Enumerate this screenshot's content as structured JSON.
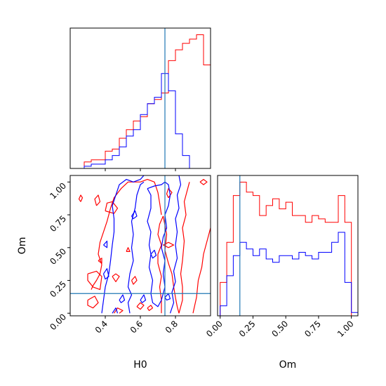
{
  "chart_data": {
    "type": "corner-plot",
    "parameters": [
      "H0",
      "Om"
    ],
    "truth": {
      "H0": 0.74,
      "Om": 0.15
    },
    "colors": {
      "red_series": "#ff0000",
      "blue_series": "#0000ff",
      "truth_line": "#1f77b4"
    },
    "axes": {
      "H0": {
        "xlim": [
          0.2,
          1.0
        ],
        "ticks": [
          0.4,
          0.6,
          0.8
        ],
        "tick_labels": [
          "0.4",
          "0.6",
          "0.8"
        ],
        "label": "H0"
      },
      "Om": {
        "lim": [
          -0.02,
          1.05
        ],
        "ticks": [
          0.0,
          0.25,
          0.5,
          0.75,
          1.0
        ],
        "tick_labels": [
          "0.00",
          "0.25",
          "0.50",
          "0.75",
          "1.00"
        ],
        "label": "Om"
      }
    },
    "hist_H0": {
      "bin_edges": [
        0.28,
        0.32,
        0.36,
        0.4,
        0.44,
        0.48,
        0.52,
        0.56,
        0.6,
        0.64,
        0.68,
        0.72,
        0.76,
        0.8,
        0.84,
        0.88,
        0.92,
        0.96,
        1.0
      ],
      "red": [
        3,
        4,
        4,
        8,
        9,
        14,
        18,
        22,
        24,
        30,
        32,
        35,
        50,
        55,
        58,
        60,
        62,
        48,
        35
      ],
      "blue": [
        1,
        2,
        2,
        4,
        6,
        10,
        15,
        18,
        25,
        30,
        33,
        44,
        36,
        16,
        6,
        0,
        0,
        0,
        0
      ]
    },
    "hist_Om": {
      "bin_edges": [
        -0.05,
        0.0,
        0.05,
        0.1,
        0.15,
        0.2,
        0.25,
        0.3,
        0.35,
        0.4,
        0.45,
        0.5,
        0.55,
        0.6,
        0.65,
        0.7,
        0.75,
        0.8,
        0.85,
        0.9,
        0.95,
        1.0,
        1.05
      ],
      "red": [
        0,
        10,
        22,
        36,
        40,
        37,
        36,
        30,
        33,
        35,
        32,
        34,
        30,
        30,
        28,
        30,
        29,
        28,
        28,
        36,
        28,
        0,
        0
      ],
      "blue": [
        0,
        3,
        12,
        18,
        22,
        20,
        18,
        20,
        17,
        16,
        18,
        18,
        17,
        19,
        18,
        17,
        19,
        19,
        22,
        25,
        10,
        1,
        0
      ]
    },
    "contours_red": [
      [
        [
          0.32,
          0.18
        ],
        [
          0.33,
          0.21
        ],
        [
          0.35,
          0.25
        ],
        [
          0.37,
          0.3
        ],
        [
          0.38,
          0.37
        ],
        [
          0.36,
          0.45
        ],
        [
          0.37,
          0.54
        ],
        [
          0.39,
          0.62
        ],
        [
          0.41,
          0.7
        ],
        [
          0.43,
          0.8
        ],
        [
          0.45,
          0.88
        ],
        [
          0.49,
          0.95
        ],
        [
          0.53,
          1.0
        ],
        [
          0.6,
          1.0
        ],
        [
          0.64,
          1.02
        ],
        [
          0.68,
          1.0
        ],
        [
          0.7,
          0.92
        ],
        [
          0.71,
          0.84
        ],
        [
          0.72,
          0.75
        ]
      ],
      [
        [
          0.73,
          0.74
        ],
        [
          0.75,
          0.6
        ],
        [
          0.74,
          0.48
        ],
        [
          0.76,
          0.38
        ],
        [
          0.78,
          0.3
        ],
        [
          0.79,
          0.2
        ],
        [
          0.8,
          0.12
        ],
        [
          0.81,
          0.05
        ],
        [
          0.82,
          0.0
        ]
      ],
      [
        [
          0.72,
          0.0
        ],
        [
          0.72,
          0.1
        ],
        [
          0.71,
          0.2
        ],
        [
          0.72,
          0.28
        ],
        [
          0.7,
          0.38
        ],
        [
          0.7,
          0.45
        ],
        [
          0.72,
          0.52
        ],
        [
          0.7,
          0.6
        ],
        [
          0.71,
          0.68
        ],
        [
          0.73,
          0.74
        ]
      ],
      [
        [
          0.82,
          0.0
        ],
        [
          0.84,
          0.1
        ],
        [
          0.84,
          0.2
        ],
        [
          0.83,
          0.3
        ],
        [
          0.84,
          0.4
        ],
        [
          0.85,
          0.55
        ],
        [
          0.84,
          0.65
        ],
        [
          0.86,
          0.75
        ],
        [
          0.85,
          0.85
        ],
        [
          0.87,
          0.95
        ],
        [
          0.88,
          1.0
        ]
      ],
      [
        [
          0.9,
          0.0
        ],
        [
          0.92,
          0.12
        ],
        [
          0.93,
          0.25
        ],
        [
          0.95,
          0.35
        ],
        [
          0.96,
          0.45
        ],
        [
          0.98,
          0.55
        ],
        [
          1.0,
          0.65
        ]
      ],
      [
        [
          0.3,
          0.3
        ],
        [
          0.35,
          0.32
        ],
        [
          0.38,
          0.28
        ],
        [
          0.37,
          0.18
        ],
        [
          0.33,
          0.2
        ],
        [
          0.3,
          0.25
        ],
        [
          0.3,
          0.3
        ]
      ],
      [
        [
          0.3,
          0.1
        ],
        [
          0.34,
          0.13
        ],
        [
          0.36,
          0.08
        ],
        [
          0.33,
          0.04
        ],
        [
          0.3,
          0.06
        ],
        [
          0.3,
          0.1
        ]
      ],
      [
        [
          0.4,
          0.78
        ],
        [
          0.45,
          0.76
        ],
        [
          0.47,
          0.8
        ],
        [
          0.44,
          0.85
        ],
        [
          0.41,
          0.84
        ],
        [
          0.4,
          0.78
        ]
      ],
      [
        [
          0.35,
          0.82
        ],
        [
          0.37,
          0.85
        ],
        [
          0.36,
          0.9
        ],
        [
          0.34,
          0.87
        ],
        [
          0.35,
          0.82
        ]
      ],
      [
        [
          0.26,
          0.85
        ],
        [
          0.27,
          0.88
        ],
        [
          0.26,
          0.9
        ],
        [
          0.25,
          0.87
        ],
        [
          0.26,
          0.85
        ]
      ],
      [
        [
          0.73,
          0.52
        ],
        [
          0.76,
          0.5
        ],
        [
          0.79,
          0.52
        ],
        [
          0.76,
          0.54
        ],
        [
          0.73,
          0.52
        ]
      ],
      [
        [
          0.76,
          0.88
        ],
        [
          0.78,
          0.92
        ],
        [
          0.76,
          0.95
        ],
        [
          0.75,
          0.91
        ],
        [
          0.76,
          0.88
        ]
      ],
      [
        [
          0.94,
          1.0
        ],
        [
          0.96,
          1.02
        ],
        [
          0.98,
          1.0
        ],
        [
          0.96,
          0.98
        ],
        [
          0.94,
          1.0
        ]
      ],
      [
        [
          0.44,
          0.28
        ],
        [
          0.46,
          0.3
        ],
        [
          0.48,
          0.28
        ],
        [
          0.46,
          0.24
        ],
        [
          0.44,
          0.28
        ]
      ],
      [
        [
          0.55,
          0.25
        ],
        [
          0.57,
          0.28
        ],
        [
          0.58,
          0.25
        ],
        [
          0.56,
          0.22
        ],
        [
          0.55,
          0.25
        ]
      ],
      [
        [
          0.58,
          0.05
        ],
        [
          0.6,
          0.08
        ],
        [
          0.62,
          0.06
        ],
        [
          0.6,
          0.03
        ],
        [
          0.58,
          0.05
        ]
      ],
      [
        [
          0.64,
          0.04
        ],
        [
          0.66,
          0.06
        ],
        [
          0.67,
          0.04
        ],
        [
          0.65,
          0.02
        ],
        [
          0.64,
          0.04
        ]
      ],
      [
        [
          0.45,
          0.0
        ],
        [
          0.47,
          0.04
        ],
        [
          0.5,
          0.02
        ],
        [
          0.48,
          0.0
        ]
      ],
      [
        [
          0.52,
          0.47
        ],
        [
          0.53,
          0.5
        ],
        [
          0.54,
          0.47
        ],
        [
          0.52,
          0.47
        ]
      ],
      [
        [
          0.36,
          0.4
        ],
        [
          0.38,
          0.42
        ],
        [
          0.38,
          0.38
        ],
        [
          0.36,
          0.4
        ]
      ]
    ],
    "contours_blue": [
      [
        [
          0.38,
          0.0
        ],
        [
          0.39,
          0.1
        ],
        [
          0.4,
          0.2
        ],
        [
          0.42,
          0.3
        ],
        [
          0.43,
          0.4
        ],
        [
          0.44,
          0.52
        ],
        [
          0.45,
          0.62
        ],
        [
          0.45,
          0.72
        ],
        [
          0.44,
          0.82
        ],
        [
          0.46,
          0.9
        ],
        [
          0.48,
          0.98
        ],
        [
          0.52,
          1.02
        ],
        [
          0.56,
          1.0
        ],
        [
          0.6,
          1.02
        ],
        [
          0.62,
          1.05
        ]
      ],
      [
        [
          0.54,
          0.0
        ],
        [
          0.53,
          0.08
        ],
        [
          0.55,
          0.14
        ],
        [
          0.53,
          0.2
        ],
        [
          0.54,
          0.3
        ],
        [
          0.56,
          0.4
        ],
        [
          0.55,
          0.5
        ],
        [
          0.56,
          0.6
        ],
        [
          0.55,
          0.7
        ],
        [
          0.57,
          0.8
        ],
        [
          0.58,
          0.9
        ],
        [
          0.6,
          0.98
        ],
        [
          0.62,
          1.0
        ]
      ],
      [
        [
          0.64,
          0.95
        ],
        [
          0.66,
          0.9
        ],
        [
          0.66,
          0.8
        ],
        [
          0.64,
          0.7
        ],
        [
          0.66,
          0.62
        ],
        [
          0.65,
          0.52
        ],
        [
          0.66,
          0.45
        ],
        [
          0.65,
          0.35
        ],
        [
          0.67,
          0.25
        ],
        [
          0.66,
          0.15
        ],
        [
          0.67,
          0.08
        ],
        [
          0.7,
          0.05
        ],
        [
          0.72,
          0.1
        ]
      ],
      [
        [
          0.64,
          0.95
        ],
        [
          0.68,
          0.97
        ],
        [
          0.72,
          0.98
        ],
        [
          0.74,
          1.0
        ],
        [
          0.76,
          0.98
        ],
        [
          0.77,
          0.9
        ],
        [
          0.76,
          0.82
        ],
        [
          0.74,
          0.75
        ],
        [
          0.75,
          0.65
        ],
        [
          0.73,
          0.58
        ],
        [
          0.72,
          0.5
        ],
        [
          0.74,
          0.4
        ],
        [
          0.73,
          0.3
        ],
        [
          0.74,
          0.2
        ],
        [
          0.72,
          0.1
        ]
      ],
      [
        [
          0.77,
          0.0
        ],
        [
          0.79,
          0.08
        ],
        [
          0.78,
          0.16
        ],
        [
          0.8,
          0.24
        ],
        [
          0.79,
          0.32
        ],
        [
          0.81,
          0.42
        ],
        [
          0.8,
          0.52
        ],
        [
          0.81,
          0.62
        ],
        [
          0.8,
          0.72
        ],
        [
          0.82,
          0.8
        ],
        [
          0.81,
          0.9
        ],
        [
          0.83,
          0.98
        ],
        [
          0.82,
          1.05
        ]
      ],
      [
        [
          0.66,
          0.45
        ],
        [
          0.68,
          0.48
        ],
        [
          0.69,
          0.44
        ],
        [
          0.67,
          0.42
        ],
        [
          0.66,
          0.45
        ]
      ],
      [
        [
          0.39,
          0.3
        ],
        [
          0.41,
          0.34
        ],
        [
          0.42,
          0.28
        ],
        [
          0.4,
          0.26
        ],
        [
          0.39,
          0.3
        ]
      ],
      [
        [
          0.39,
          0.52
        ],
        [
          0.41,
          0.55
        ],
        [
          0.41,
          0.5
        ],
        [
          0.39,
          0.52
        ]
      ],
      [
        [
          0.48,
          0.1
        ],
        [
          0.5,
          0.14
        ],
        [
          0.51,
          0.1
        ],
        [
          0.49,
          0.08
        ],
        [
          0.48,
          0.1
        ]
      ],
      [
        [
          0.6,
          0.1
        ],
        [
          0.62,
          0.14
        ],
        [
          0.63,
          0.1
        ],
        [
          0.61,
          0.08
        ],
        [
          0.6,
          0.1
        ]
      ],
      [
        [
          0.55,
          0.74
        ],
        [
          0.57,
          0.78
        ],
        [
          0.58,
          0.74
        ],
        [
          0.56,
          0.72
        ],
        [
          0.55,
          0.74
        ]
      ],
      [
        [
          0.44,
          0.0
        ],
        [
          0.46,
          0.04
        ],
        [
          0.47,
          0.0
        ]
      ],
      [
        [
          0.74,
          0.12
        ],
        [
          0.76,
          0.15
        ],
        [
          0.77,
          0.11
        ],
        [
          0.75,
          0.1
        ],
        [
          0.74,
          0.12
        ]
      ]
    ]
  }
}
